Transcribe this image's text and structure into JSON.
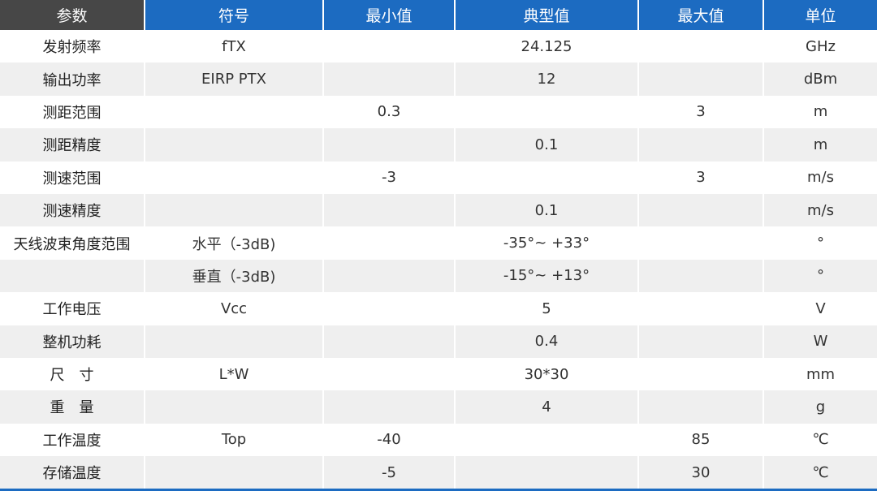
{
  "table": {
    "headers": [
      "参数",
      "符号",
      "最小值",
      "典型值",
      "最大值",
      "单位"
    ],
    "rows": [
      [
        "发射频率",
        "fTX",
        "",
        "24.125",
        "",
        "GHz"
      ],
      [
        "输出功率",
        "EIRP PTX",
        "",
        "12",
        "",
        "dBm"
      ],
      [
        "测距范围",
        "",
        "0.3",
        "",
        "3",
        "m"
      ],
      [
        "测距精度",
        "",
        "",
        "0.1",
        "",
        "m"
      ],
      [
        "测速范围",
        "",
        "-3",
        "",
        "3",
        "m/s"
      ],
      [
        "测速精度",
        "",
        "",
        "0.1",
        "",
        "m/s"
      ],
      [
        "天线波束角度范围",
        "水平（-3dB)",
        "",
        "-35°~ +33°",
        "",
        "°"
      ],
      [
        "",
        "垂直（-3dB)",
        "",
        "-15°~ +13°",
        "",
        "°"
      ],
      [
        "工作电压",
        "Vcc",
        "",
        "5",
        "",
        "V"
      ],
      [
        "整机功耗",
        "",
        "",
        "0.4",
        "",
        "W"
      ],
      [
        "尺　寸",
        "L*W",
        "",
        "30*30",
        "",
        "mm"
      ],
      [
        "重　量",
        "",
        "",
        "4",
        "",
        "g"
      ],
      [
        "工作温度",
        "Top",
        "-40",
        "",
        "85",
        "℃"
      ],
      [
        "存储温度",
        "",
        "-5",
        "",
        "30",
        "℃"
      ]
    ]
  },
  "colors": {
    "header_first": "#474747",
    "header_accent": "#1c6bc1",
    "row_stripe": "#efefef"
  }
}
